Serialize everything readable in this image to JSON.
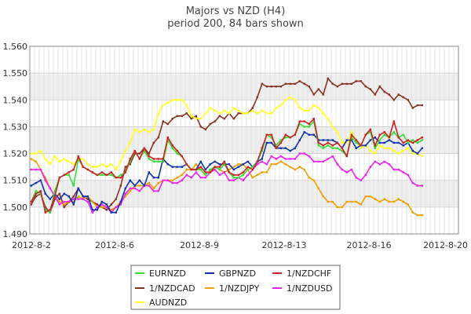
{
  "chart_data": {
    "type": "line",
    "title": "Majors vs NZD (H4)",
    "subtitle": "period 200, 84 bars shown",
    "xlabel": "",
    "ylabel": "",
    "ylim": [
      1.49,
      1.56
    ],
    "y_ticks": [
      "1.560",
      "1.550",
      "1.540",
      "1.530",
      "1.520",
      "1.510",
      "1.500",
      "1.490"
    ],
    "x_ticks": [
      {
        "bar": 0,
        "label": "2012-8-2"
      },
      {
        "bar": 18,
        "label": "2012-8-6"
      },
      {
        "bar": 36,
        "label": "2012-8-9"
      },
      {
        "bar": 54,
        "label": "2012-8-13"
      },
      {
        "bar": 72,
        "label": "2012-8-16"
      },
      {
        "bar": 90,
        "label": "2012-8-20"
      }
    ],
    "bar_count": 84,
    "grid": true,
    "legend_position": "bottom",
    "series": [
      {
        "name": "EURNZD",
        "color": "#33dd33",
        "values": [
          1.502,
          1.506,
          1.505,
          1.499,
          1.498,
          1.506,
          1.511,
          1.512,
          1.512,
          1.508,
          1.518,
          1.515,
          1.514,
          1.513,
          1.512,
          1.512,
          1.512,
          1.512,
          1.511,
          1.512,
          1.513,
          1.517,
          1.521,
          1.518,
          1.521,
          1.518,
          1.517,
          1.517,
          1.517,
          1.525,
          1.522,
          1.52,
          1.519,
          1.516,
          1.514,
          1.514,
          1.514,
          1.512,
          1.514,
          1.515,
          1.514,
          1.516,
          1.513,
          1.511,
          1.511,
          1.512,
          1.514,
          1.515,
          1.517,
          1.521,
          1.527,
          1.526,
          1.523,
          1.525,
          1.526,
          1.526,
          1.527,
          1.531,
          1.53,
          1.53,
          1.532,
          1.523,
          1.522,
          1.523,
          1.522,
          1.522,
          1.521,
          1.519,
          1.526,
          1.524,
          1.523,
          1.527,
          1.528,
          1.522,
          1.525,
          1.527,
          1.526,
          1.528,
          1.526,
          1.527,
          1.524,
          1.525,
          1.524,
          1.525
        ]
      },
      {
        "name": "GBPNZD",
        "color": "#1133aa",
        "values": [
          1.508,
          1.509,
          1.51,
          1.505,
          1.503,
          1.505,
          1.503,
          1.505,
          1.504,
          1.501,
          1.507,
          1.504,
          1.504,
          1.499,
          1.499,
          1.502,
          1.501,
          1.498,
          1.498,
          1.502,
          1.507,
          1.51,
          1.508,
          1.51,
          1.508,
          1.513,
          1.511,
          1.511,
          1.518,
          1.516,
          1.515,
          1.515,
          1.515,
          1.516,
          1.514,
          1.514,
          1.517,
          1.514,
          1.516,
          1.517,
          1.516,
          1.516,
          1.516,
          1.514,
          1.515,
          1.516,
          1.517,
          1.515,
          1.517,
          1.518,
          1.524,
          1.524,
          1.522,
          1.522,
          1.522,
          1.521,
          1.522,
          1.525,
          1.528,
          1.527,
          1.527,
          1.525,
          1.525,
          1.525,
          1.525,
          1.524,
          1.522,
          1.525,
          1.525,
          1.522,
          1.523,
          1.523,
          1.525,
          1.526,
          1.524,
          1.524,
          1.525,
          1.524,
          1.524,
          1.523,
          1.524,
          1.521,
          1.52,
          1.522
        ]
      },
      {
        "name": "1/NZDCHF",
        "color": "#cc2222",
        "values": [
          1.502,
          1.505,
          1.506,
          1.498,
          1.499,
          1.504,
          1.511,
          1.512,
          1.513,
          1.514,
          1.519,
          1.515,
          1.514,
          1.513,
          1.512,
          1.513,
          1.512,
          1.513,
          1.511,
          1.511,
          1.513,
          1.518,
          1.521,
          1.518,
          1.522,
          1.519,
          1.518,
          1.518,
          1.518,
          1.526,
          1.523,
          1.521,
          1.519,
          1.516,
          1.514,
          1.514,
          1.515,
          1.513,
          1.513,
          1.515,
          1.515,
          1.517,
          1.513,
          1.512,
          1.512,
          1.513,
          1.515,
          1.514,
          1.517,
          1.522,
          1.527,
          1.527,
          1.522,
          1.524,
          1.527,
          1.526,
          1.527,
          1.532,
          1.532,
          1.531,
          1.533,
          1.524,
          1.523,
          1.524,
          1.523,
          1.524,
          1.522,
          1.519,
          1.527,
          1.525,
          1.523,
          1.527,
          1.529,
          1.523,
          1.527,
          1.528,
          1.526,
          1.532,
          1.526,
          1.524,
          1.525,
          1.524,
          1.525,
          1.526
        ]
      },
      {
        "name": "1/NZDCAD",
        "color": "#883322",
        "values": [
          1.501,
          1.504,
          1.505,
          1.5,
          1.498,
          1.503,
          1.505,
          1.5,
          1.502,
          1.504,
          1.507,
          1.504,
          1.503,
          1.502,
          1.501,
          1.5,
          1.499,
          1.501,
          1.503,
          1.508,
          1.515,
          1.516,
          1.52,
          1.52,
          1.522,
          1.52,
          1.524,
          1.526,
          1.532,
          1.531,
          1.533,
          1.534,
          1.534,
          1.535,
          1.533,
          1.534,
          1.53,
          1.529,
          1.531,
          1.532,
          1.534,
          1.533,
          1.535,
          1.533,
          1.535,
          1.535,
          1.535,
          1.537,
          1.541,
          1.546,
          1.545,
          1.545,
          1.545,
          1.545,
          1.546,
          1.546,
          1.546,
          1.547,
          1.546,
          1.545,
          1.542,
          1.544,
          1.542,
          1.548,
          1.546,
          1.545,
          1.546,
          1.546,
          1.546,
          1.547,
          1.547,
          1.545,
          1.544,
          1.542,
          1.545,
          1.543,
          1.542,
          1.54,
          1.542,
          1.541,
          1.54,
          1.537,
          1.538,
          1.538
        ]
      },
      {
        "name": "1/NZDJPY",
        "color": "#eea000",
        "values": [
          1.518,
          1.517,
          1.514,
          1.511,
          1.507,
          1.504,
          1.502,
          1.501,
          1.502,
          1.502,
          1.504,
          1.503,
          1.504,
          1.502,
          1.5,
          1.5,
          1.5,
          1.499,
          1.5,
          1.502,
          1.504,
          1.506,
          1.508,
          1.508,
          1.508,
          1.509,
          1.507,
          1.509,
          1.51,
          1.51,
          1.51,
          1.511,
          1.512,
          1.514,
          1.514,
          1.516,
          1.514,
          1.512,
          1.514,
          1.515,
          1.514,
          1.513,
          1.514,
          1.515,
          1.516,
          1.516,
          1.514,
          1.511,
          1.512,
          1.513,
          1.513,
          1.516,
          1.516,
          1.517,
          1.516,
          1.515,
          1.514,
          1.515,
          1.514,
          1.511,
          1.51,
          1.507,
          1.504,
          1.502,
          1.502,
          1.5,
          1.5,
          1.502,
          1.502,
          1.502,
          1.501,
          1.504,
          1.504,
          1.503,
          1.502,
          1.503,
          1.502,
          1.502,
          1.503,
          1.502,
          1.501,
          1.498,
          1.497,
          1.497
        ]
      },
      {
        "name": "1/NZDUSD",
        "color": "#ee22ee",
        "values": [
          1.514,
          1.514,
          1.514,
          1.51,
          1.507,
          1.504,
          1.501,
          1.502,
          1.502,
          1.503,
          1.503,
          1.503,
          1.502,
          1.498,
          1.5,
          1.501,
          1.5,
          1.498,
          1.5,
          1.501,
          1.505,
          1.507,
          1.507,
          1.506,
          1.508,
          1.508,
          1.506,
          1.506,
          1.51,
          1.51,
          1.509,
          1.509,
          1.51,
          1.512,
          1.511,
          1.513,
          1.511,
          1.511,
          1.513,
          1.514,
          1.512,
          1.513,
          1.51,
          1.51,
          1.511,
          1.51,
          1.512,
          1.514,
          1.516,
          1.517,
          1.516,
          1.519,
          1.518,
          1.519,
          1.518,
          1.518,
          1.518,
          1.52,
          1.52,
          1.519,
          1.517,
          1.517,
          1.517,
          1.518,
          1.519,
          1.516,
          1.514,
          1.513,
          1.514,
          1.511,
          1.51,
          1.512,
          1.515,
          1.517,
          1.516,
          1.517,
          1.516,
          1.514,
          1.514,
          1.513,
          1.512,
          1.509,
          1.508,
          1.508
        ]
      },
      {
        "name": "AUDNZD",
        "color": "#ffff22",
        "values": [
          1.52,
          1.52,
          1.521,
          1.518,
          1.516,
          1.519,
          1.517,
          1.518,
          1.517,
          1.516,
          1.518,
          1.518,
          1.516,
          1.515,
          1.515,
          1.516,
          1.515,
          1.516,
          1.514,
          1.517,
          1.521,
          1.524,
          1.529,
          1.528,
          1.529,
          1.528,
          1.529,
          1.535,
          1.538,
          1.539,
          1.54,
          1.54,
          1.54,
          1.538,
          1.534,
          1.533,
          1.533,
          1.535,
          1.537,
          1.536,
          1.535,
          1.536,
          1.535,
          1.537,
          1.536,
          1.535,
          1.535,
          1.536,
          1.535,
          1.536,
          1.535,
          1.535,
          1.537,
          1.538,
          1.54,
          1.541,
          1.54,
          1.537,
          1.536,
          1.536,
          1.538,
          1.537,
          1.535,
          1.533,
          1.53,
          1.528,
          1.524,
          1.524,
          1.528,
          1.525,
          1.522,
          1.523,
          1.521,
          1.52,
          1.523,
          1.522,
          1.522,
          1.521,
          1.52,
          1.521,
          1.522,
          1.52,
          1.52,
          1.519
        ]
      }
    ]
  }
}
